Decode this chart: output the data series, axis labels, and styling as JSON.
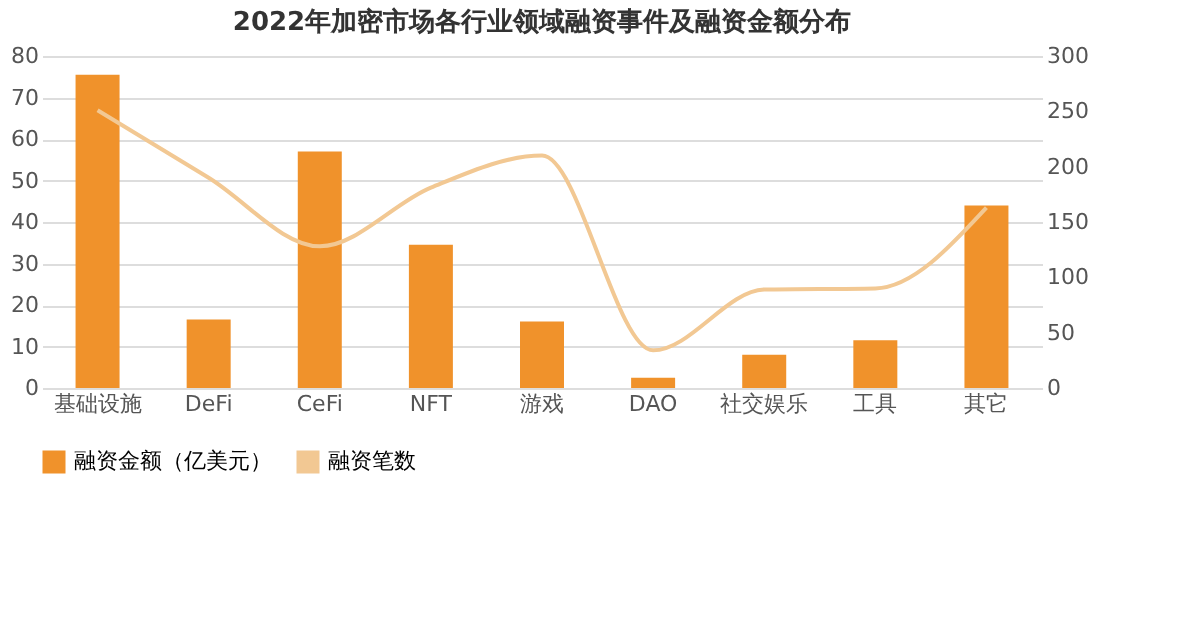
{
  "chart_data": {
    "type": "bar",
    "title": "2022年加密市场各行业领域融资事件及融资金额分布",
    "categories": [
      "基础设施",
      "DeFi",
      "CeFi",
      "NFT",
      "游戏",
      "DAO",
      "社交娱乐",
      "工具",
      "其它"
    ],
    "series": [
      {
        "name": "融资金额（亿美元）",
        "color": "#f0922b",
        "values": [
          75.5,
          16.5,
          57,
          34.5,
          16,
          2.5,
          8,
          11.5,
          44
        ]
      },
      {
        "name": "融资笔数",
        "type": "line",
        "axis": "y2",
        "color": "#f2c893",
        "values": [
          251,
          190,
          128,
          181,
          210,
          34,
          89,
          90,
          163
        ]
      }
    ],
    "ylim": [
      0,
      80
    ],
    "yticks": [
      0,
      10,
      20,
      30,
      40,
      50,
      60,
      70,
      80
    ],
    "y2lim": [
      0,
      300
    ],
    "y2ticks": [
      0,
      50,
      100,
      150,
      200,
      250,
      300
    ],
    "grid": "y",
    "legend": "bottom"
  }
}
